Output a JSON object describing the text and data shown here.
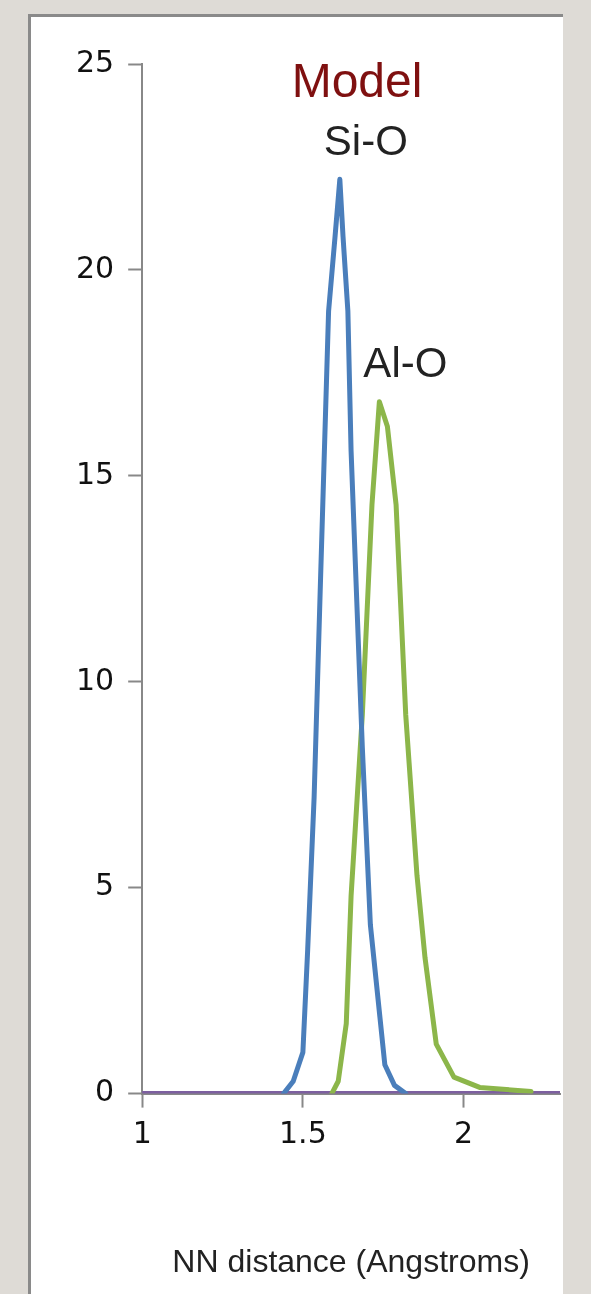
{
  "chart_data": {
    "type": "line",
    "title": "Model",
    "xlabel": "NN distance (Angstroms)",
    "xlim": [
      1,
      2.3
    ],
    "xticks": [
      1,
      1.5,
      2
    ],
    "ylim": [
      0,
      25
    ],
    "yticks": [
      0,
      5,
      10,
      15,
      20,
      25
    ],
    "grid": false,
    "legend": false,
    "marker": "none",
    "line_style": "solid",
    "series": [
      {
        "name": "Si-O",
        "color": "#4a7ebb",
        "x": [
          1.44,
          1.47,
          1.5,
          1.515,
          1.535,
          1.555,
          1.58,
          1.6,
          1.615,
          1.625,
          1.64,
          1.65,
          1.685,
          1.71,
          1.755,
          1.785,
          1.82
        ],
        "values": [
          0,
          0.3,
          1.0,
          3.5,
          7.2,
          12.5,
          19,
          20.8,
          22.2,
          20.8,
          19,
          15.6,
          8.4,
          4.1,
          0.7,
          0.2,
          0
        ]
      },
      {
        "name": "Al-O",
        "color": "#8cb64a",
        "x": [
          1.59,
          1.61,
          1.635,
          1.65,
          1.685,
          1.715,
          1.738,
          1.763,
          1.79,
          1.82,
          1.855,
          1.88,
          1.915,
          1.97,
          2.05,
          2.21
        ],
        "values": [
          0,
          0.3,
          1.7,
          4.8,
          9.2,
          14.3,
          16.8,
          16.2,
          14.3,
          9.2,
          5.3,
          3.3,
          1.2,
          0.4,
          0.15,
          0.05
        ]
      },
      {
        "color": "#7d5fa0",
        "x": [
          1,
          2.3
        ],
        "values": [
          0,
          0
        ]
      }
    ]
  }
}
